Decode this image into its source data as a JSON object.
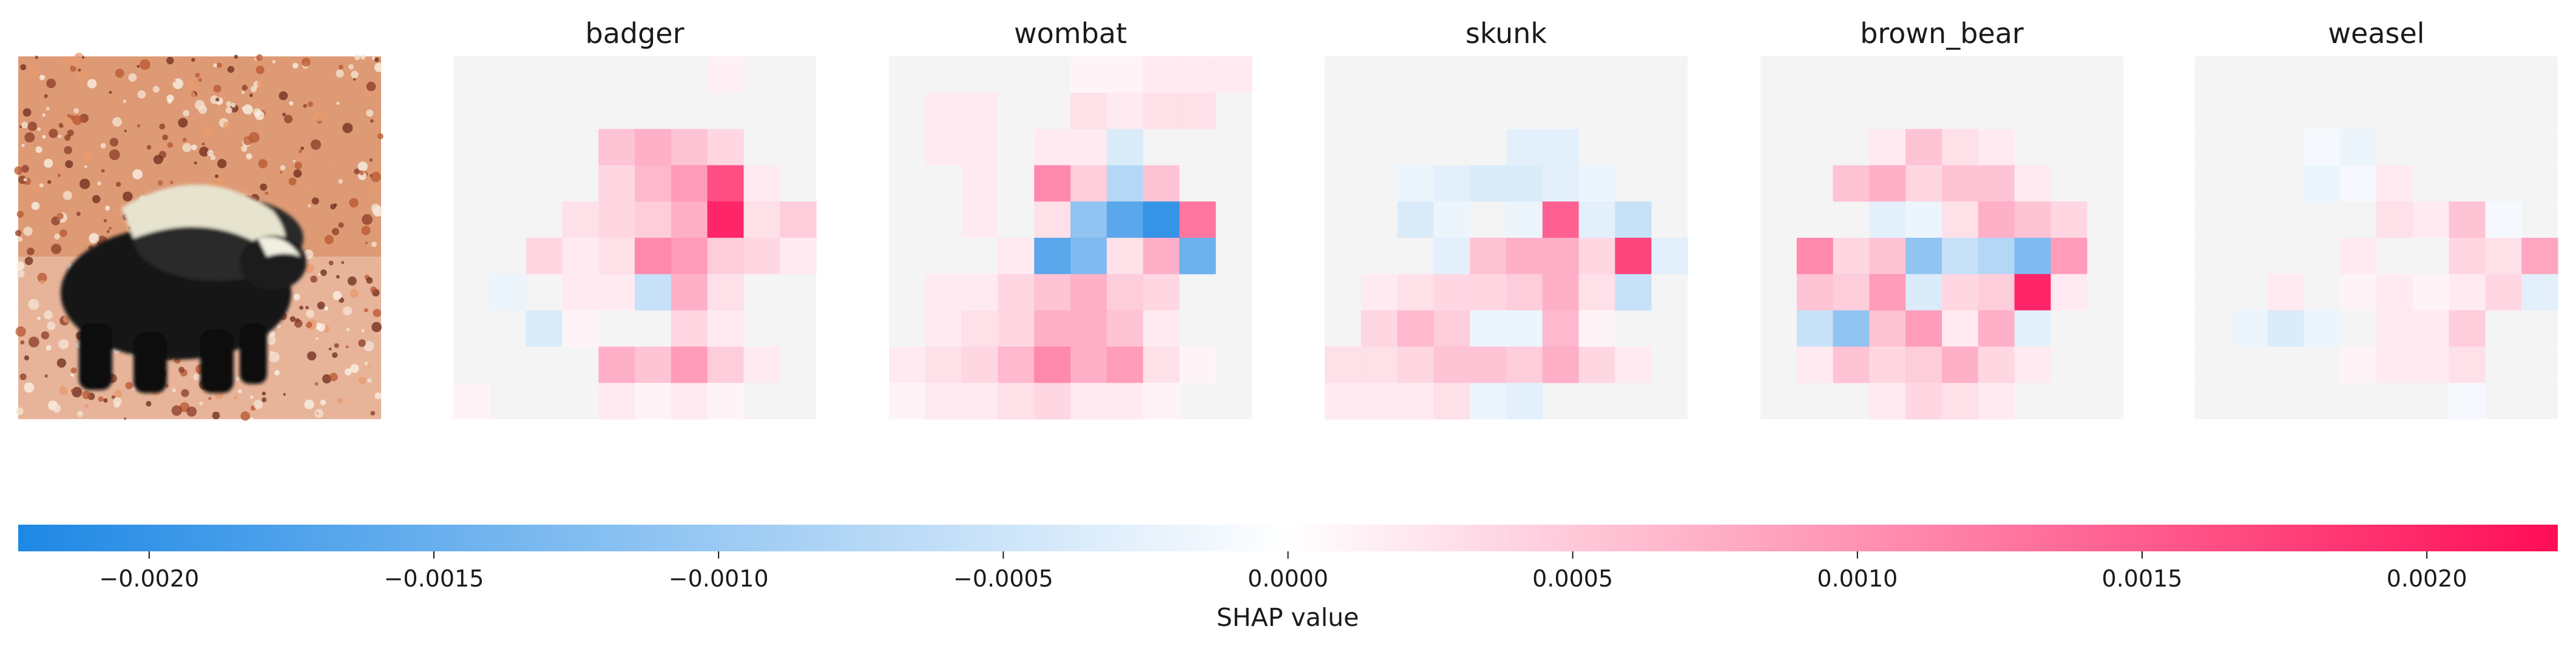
{
  "chart_data": {
    "type": "heatmap",
    "title": "",
    "panels": [
      {
        "name": "original-image",
        "title": "",
        "kind": "photo"
      },
      {
        "name": "badger",
        "title": "badger",
        "kind": "shap"
      },
      {
        "name": "wombat",
        "title": "wombat",
        "kind": "shap"
      },
      {
        "name": "skunk",
        "title": "skunk",
        "kind": "shap"
      },
      {
        "name": "brown_bear",
        "title": "brown_bear",
        "kind": "shap"
      },
      {
        "name": "weasel",
        "title": "weasel",
        "kind": "shap"
      }
    ],
    "grid": {
      "rows": 10,
      "cols": 10
    },
    "shap_values": {
      "badger": [
        [
          0,
          0,
          0,
          0,
          0,
          0,
          0,
          0.00015,
          0,
          0
        ],
        [
          0,
          0,
          0,
          0,
          0,
          0,
          0,
          0,
          0,
          0
        ],
        [
          0,
          0,
          0,
          0,
          0.0006,
          0.0008,
          0.0006,
          0.0004,
          0,
          0
        ],
        [
          0,
          0,
          0,
          0,
          0.0004,
          0.0007,
          0.001,
          0.0018,
          0.0002,
          0
        ],
        [
          0,
          0,
          0,
          0.0003,
          0.0004,
          0.0005,
          0.0008,
          0.0022,
          0.0003,
          0.0005
        ],
        [
          0,
          0,
          0.0004,
          0.0002,
          0.0003,
          0.0012,
          0.001,
          0.0005,
          0.0004,
          0.0002
        ],
        [
          0,
          -0.0002,
          0,
          0.0002,
          0.0002,
          -0.0006,
          0.0008,
          0.0003,
          0,
          0
        ],
        [
          0,
          0,
          -0.0004,
          0.0001,
          0,
          0,
          0.0004,
          0.0002,
          0,
          0
        ],
        [
          0,
          0,
          0,
          0,
          0.0008,
          0.0006,
          0.001,
          0.0005,
          0.0002,
          0
        ],
        [
          0.0001,
          0,
          0,
          0,
          0.0002,
          0.0001,
          0.0002,
          0.0001,
          0,
          0
        ]
      ],
      "wombat": [
        [
          0,
          0,
          0,
          0,
          0,
          0.0001,
          0.0001,
          0.0002,
          0.0002,
          0.0002
        ],
        [
          0,
          0.0002,
          0.0002,
          0,
          0,
          0.0003,
          0.0002,
          0.0003,
          0.0003,
          0
        ],
        [
          0,
          0.0002,
          0.0002,
          0,
          0.0002,
          0.0002,
          -0.0004,
          0,
          0,
          0
        ],
        [
          0,
          0,
          0.0002,
          0,
          0.0012,
          0.0005,
          -0.0008,
          0.0006,
          0,
          0
        ],
        [
          0,
          0,
          0.0002,
          0,
          0.0003,
          -0.0012,
          -0.0018,
          -0.0022,
          0.0014,
          0
        ],
        [
          0,
          0,
          0,
          0.0002,
          -0.0018,
          -0.0014,
          0.0003,
          0.0008,
          -0.0016,
          0
        ],
        [
          0,
          0.0002,
          0.0002,
          0.0004,
          0.0006,
          0.0008,
          0.0005,
          0.0004,
          0,
          0
        ],
        [
          0,
          0.0002,
          0.0003,
          0.0004,
          0.0008,
          0.0008,
          0.0006,
          0.0002,
          0,
          0
        ],
        [
          0.0002,
          0.0003,
          0.0004,
          0.0007,
          0.0012,
          0.0008,
          0.001,
          0.0003,
          0.0001,
          0
        ],
        [
          0.0001,
          0.0002,
          0.0002,
          0.0003,
          0.0004,
          0.0002,
          0.0002,
          0.0001,
          0,
          0
        ]
      ],
      "skunk": [
        [
          0,
          0,
          0,
          0,
          0,
          0,
          0,
          0,
          0,
          0
        ],
        [
          0,
          0,
          0,
          0,
          0,
          0,
          0,
          0,
          0,
          0
        ],
        [
          0,
          0,
          0,
          0,
          0,
          -0.0003,
          -0.0003,
          0,
          0,
          0
        ],
        [
          0,
          0,
          -0.0002,
          -0.0003,
          -0.0004,
          -0.0004,
          -0.0003,
          -0.0002,
          0,
          0
        ],
        [
          0,
          0,
          -0.0004,
          -0.0002,
          0,
          -0.0002,
          0.0016,
          -0.0003,
          -0.0006,
          0
        ],
        [
          0,
          0,
          0,
          -0.0003,
          0.0006,
          0.0008,
          0.0008,
          0.0004,
          0.0019,
          -0.0003
        ],
        [
          0,
          0.0002,
          0.0003,
          0.0004,
          0.0004,
          0.0005,
          0.0008,
          0.0003,
          -0.0006,
          0
        ],
        [
          0,
          0.0004,
          0.0007,
          0.0005,
          -0.0002,
          -0.0002,
          0.0007,
          0.0001,
          0,
          0
        ],
        [
          0.0003,
          0.0003,
          0.0004,
          0.0006,
          0.0006,
          0.0005,
          0.0008,
          0.0004,
          0.0002,
          0
        ],
        [
          0.0002,
          0.0002,
          0.0002,
          0.0003,
          -0.0002,
          -0.0003,
          0,
          0,
          0,
          0
        ]
      ],
      "brown_bear": [
        [
          0,
          0,
          0,
          0,
          0,
          0,
          0,
          0,
          0,
          0
        ],
        [
          0,
          0,
          0,
          0,
          0,
          0,
          0,
          0,
          0,
          0
        ],
        [
          0,
          0,
          0,
          0.0002,
          0.0006,
          0.0003,
          0.0002,
          0,
          0,
          0
        ],
        [
          0,
          0,
          0.0006,
          0.0008,
          0.0004,
          0.0006,
          0.0006,
          0.0002,
          0,
          0
        ],
        [
          0,
          0,
          0,
          -0.0003,
          -0.0002,
          0.0003,
          0.0008,
          0.0006,
          0.0004,
          0
        ],
        [
          0,
          0.0012,
          0.0004,
          0.0006,
          -0.0012,
          -0.0006,
          -0.0008,
          -0.0014,
          0.001,
          0
        ],
        [
          0,
          0.0006,
          0.0005,
          0.001,
          -0.0004,
          0.0004,
          0.0005,
          0.0022,
          0.0002,
          0
        ],
        [
          0,
          -0.0006,
          -0.0012,
          0.0006,
          0.001,
          0.0002,
          0.0008,
          -0.0003,
          0,
          0
        ],
        [
          0,
          0.0002,
          0.0006,
          0.0004,
          0.0005,
          0.0008,
          0.0004,
          0.0002,
          0,
          0
        ],
        [
          0,
          0,
          0,
          0.0002,
          0.0004,
          0.0003,
          0.0002,
          0,
          0,
          0
        ]
      ],
      "weasel": [
        [
          0,
          0,
          0,
          0,
          0,
          0,
          0,
          0,
          0,
          0
        ],
        [
          0,
          0,
          0,
          0,
          0,
          0,
          0,
          0,
          0,
          0
        ],
        [
          0,
          0,
          0,
          -0.0001,
          -0.0002,
          0,
          0,
          0,
          0,
          0
        ],
        [
          0,
          0,
          0,
          -0.0002,
          -0.0001,
          0.0002,
          0,
          0,
          0,
          0
        ],
        [
          0,
          0,
          0,
          0,
          0,
          0.0003,
          0.0002,
          0.0006,
          -0.0001,
          0
        ],
        [
          0,
          0,
          0,
          0,
          0.0002,
          0,
          0,
          0.0004,
          0.0003,
          0.0009
        ],
        [
          0,
          0,
          0.0002,
          0,
          0.0001,
          0.0002,
          0.0001,
          0.0002,
          0.0004,
          -0.0003
        ],
        [
          0,
          -0.0002,
          -0.0004,
          -0.0002,
          0,
          0.0002,
          0.0002,
          0.0005,
          0,
          0
        ],
        [
          0,
          0,
          0,
          0,
          0.0001,
          0.0002,
          0.0002,
          0.0003,
          0,
          0
        ],
        [
          0,
          0,
          0,
          0,
          0,
          0,
          0,
          -0.0001,
          0,
          0
        ]
      ]
    },
    "colorbar": {
      "label": "SHAP value",
      "range": [
        -0.00223,
        0.00223
      ],
      "ticks": [
        -0.002,
        -0.0015,
        -0.001,
        -0.0005,
        0.0,
        0.0005,
        0.001,
        0.0015,
        0.002
      ],
      "tick_labels": [
        "−0.0020",
        "−0.0015",
        "−0.0010",
        "−0.0005",
        "0.0000",
        "0.0005",
        "0.0010",
        "0.0015",
        "0.0020"
      ],
      "colors": {
        "negative": "#1e88e5",
        "zero": "#ffffff",
        "positive": "#ff0d57"
      }
    }
  }
}
